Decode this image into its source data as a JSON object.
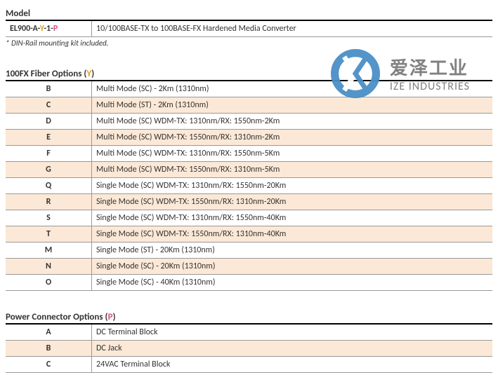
{
  "model": {
    "title": "Model",
    "code_prefix": "EL900-A-",
    "code_y": "Y",
    "code_mid": "-1-",
    "code_p": "P",
    "desc": "10/100BASE-TX to 100BASE-FX Hardened Media Converter",
    "note": "* DIN-Rail mounting kit included."
  },
  "fiber": {
    "title_prefix": "100FX Fiber Options (",
    "title_var": "Y",
    "title_suffix": ")",
    "rows": [
      {
        "code": "B",
        "desc": "Multi Mode (SC) - 2Km (1310nm)",
        "alt": false
      },
      {
        "code": "C",
        "desc": "Multi Mode (ST) - 2Km (1310nm)",
        "alt": true
      },
      {
        "code": "D",
        "desc": "Multi Mode (SC) WDM-TX: 1310nm/RX: 1550nm-2Km",
        "alt": false
      },
      {
        "code": "E",
        "desc": "Multi Mode (SC) WDM-TX: 1550nm/RX: 1310nm-2Km",
        "alt": true
      },
      {
        "code": "F",
        "desc": "Multi Mode (SC) WDM-TX: 1310nm/RX: 1550nm-5Km",
        "alt": false
      },
      {
        "code": "G",
        "desc": "Multi Mode (SC) WDM-TX: 1550nm/RX: 1310nm-5Km",
        "alt": true
      },
      {
        "code": "Q",
        "desc": "Single Mode (SC) WDM-TX: 1310nm/RX: 1550nm-20Km",
        "alt": false
      },
      {
        "code": "R",
        "desc": "Single Mode (SC) WDM-TX: 1550nm/RX: 1310nm-20Km",
        "alt": true
      },
      {
        "code": "S",
        "desc": "Single Mode (SC) WDM-TX: 1310nm/RX: 1550nm-40Km",
        "alt": false
      },
      {
        "code": "T",
        "desc": "Single Mode (SC) WDM-TX: 1550nm/RX: 1310nm-40Km",
        "alt": true
      },
      {
        "code": "M",
        "desc": "Single Mode (ST) - 20Km (1310nm)",
        "alt": false
      },
      {
        "code": "N",
        "desc": "Single Mode (SC) - 20Km (1310nm)",
        "alt": true
      },
      {
        "code": "O",
        "desc": "Single Mode (SC) - 40Km (1310nm)",
        "alt": false
      }
    ]
  },
  "power": {
    "title_prefix": "Power Connector Options (",
    "title_var": "P",
    "title_suffix": ")",
    "rows": [
      {
        "code": "A",
        "desc": "DC Terminal Block",
        "alt": false
      },
      {
        "code": "B",
        "desc": "DC Jack",
        "alt": true
      },
      {
        "code": "C",
        "desc": "24VAC Terminal Block",
        "alt": false
      }
    ]
  },
  "watermark": {
    "cn": "爱泽工业",
    "en": "IZE INDUSTRIES",
    "logo_color": "#4a8fc7"
  },
  "colors": {
    "alt_row": "#fbe8d6",
    "border": "#999999",
    "header_rule": "#000000",
    "y": "#e2a100",
    "p": "#d94f8a"
  }
}
